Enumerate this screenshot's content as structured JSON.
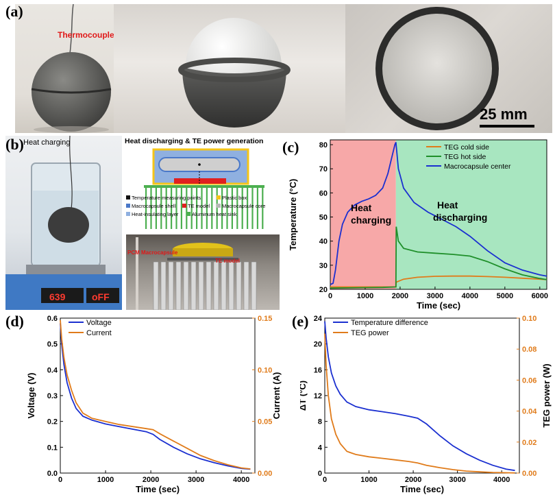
{
  "panels": {
    "a": {
      "label": "(a)",
      "thermocouple_label": "Thermocouple",
      "scale_bar": "25 mm"
    },
    "b": {
      "label": "(b)",
      "heat_charging_title": "Heat charging",
      "discharging_title": "Heat discharging & TE power generation",
      "legend": [
        {
          "text": "Temperature measuring points",
          "color": "#111111"
        },
        {
          "text": "Plastic box",
          "color": "#f5c518"
        },
        {
          "text": "Macrocapsule shell",
          "color": "#4a78c8"
        },
        {
          "text": "TE model",
          "color": "#e02020"
        },
        {
          "text": "Macrocapsule core",
          "color": "#b8b8b8"
        },
        {
          "text": "Heat-insulating layer",
          "color": "#8fb0e0"
        },
        {
          "text": "Aluminum heat sink",
          "color": "#4caf50"
        }
      ],
      "photo_labels": {
        "macrocapsule": "PCM Macrocapsule",
        "te_model": "TE model"
      },
      "display": {
        "left": "639",
        "right": "oFF"
      }
    }
  },
  "charts": {
    "c": {
      "label": "(c)",
      "annotations": [
        "Heat",
        "charging",
        "Heat",
        "discharging"
      ],
      "xtick_labels": [
        "0",
        "1000",
        "2000",
        "3000",
        "4000",
        "5000",
        "6000"
      ],
      "ytick_labels": [
        "20",
        "30",
        "40",
        "50",
        "60",
        "70",
        "80"
      ]
    },
    "d": {
      "label": "(d)",
      "xtick_labels": [
        "0",
        "1000",
        "2000",
        "3000",
        "4000"
      ],
      "y1tick_labels": [
        "0.0",
        "0.1",
        "0.2",
        "0.3",
        "0.4",
        "0.5",
        "0.6"
      ],
      "y2tick_labels": [
        "0.00",
        "0.05",
        "0.10",
        "0.15"
      ]
    },
    "e": {
      "label": "(e)",
      "xtick_labels": [
        "0",
        "1000",
        "2000",
        "3000",
        "4000"
      ],
      "y1tick_labels": [
        "0",
        "4",
        "8",
        "12",
        "16",
        "20",
        "24"
      ],
      "y2tick_labels": [
        "0.00",
        "0.02",
        "0.04",
        "0.06",
        "0.08",
        "0.10"
      ]
    }
  },
  "chart_data": [
    {
      "type": "line",
      "xlabel": "Time (sec)",
      "ylabel": "Temperature (°C)",
      "xlim": [
        0,
        6200
      ],
      "ylim": [
        20,
        82
      ],
      "legend_position": "top-right",
      "shaded_regions": [
        {
          "label": "Heat charging",
          "x": [
            0,
            1880
          ],
          "color": "#f7a8a8"
        },
        {
          "label": "Heat discharging",
          "x": [
            1880,
            6200
          ],
          "color": "#a8e6c0"
        }
      ],
      "series": [
        {
          "name": "TEG cold side",
          "color": "#e07b1a",
          "x": [
            0,
            500,
            1000,
            1500,
            1880,
            1890,
            2100,
            2500,
            3000,
            3500,
            4000,
            4500,
            5000,
            5500,
            6000,
            6200
          ],
          "y": [
            21,
            21,
            21,
            21,
            21,
            23,
            24.2,
            25,
            25.4,
            25.5,
            25.5,
            25.3,
            25,
            24.6,
            24.2,
            24
          ]
        },
        {
          "name": "TEG hot side",
          "color": "#1f8f2a",
          "x": [
            0,
            500,
            1000,
            1500,
            1880,
            1890,
            1950,
            2100,
            2500,
            3000,
            3500,
            4000,
            4500,
            5000,
            5500,
            6000,
            6200
          ],
          "y": [
            20.5,
            20.6,
            20.7,
            20.8,
            21,
            46,
            40,
            37,
            35.5,
            35,
            34.5,
            33.8,
            31.5,
            28.5,
            26,
            24.5,
            24
          ]
        },
        {
          "name": "Macrocapsule center",
          "color": "#1a2fd0",
          "x": [
            0,
            80,
            150,
            250,
            350,
            500,
            700,
            900,
            1100,
            1300,
            1500,
            1650,
            1750,
            1850,
            1880,
            1950,
            2100,
            2400,
            2800,
            3200,
            3600,
            4000,
            4500,
            5000,
            5500,
            6000,
            6200
          ],
          "y": [
            22,
            22.5,
            28,
            40,
            47,
            52,
            55,
            56.5,
            57.5,
            59,
            62,
            68,
            74,
            80,
            81,
            70,
            62,
            56,
            52,
            49,
            46,
            42,
            36,
            31,
            28,
            26,
            25.5
          ]
        }
      ]
    },
    {
      "type": "line",
      "xlabel": "Time (sec)",
      "ylabel": "Voltage (V)",
      "y2label": "Current (A)",
      "xlim": [
        0,
        4300
      ],
      "ylim": [
        0,
        0.6
      ],
      "y2lim": [
        0,
        0.15
      ],
      "legend_position": "top-left",
      "series": [
        {
          "name": "Voltage",
          "axis": "left",
          "color": "#1a2fd0",
          "x": [
            0,
            30,
            80,
            150,
            250,
            350,
            500,
            700,
            1000,
            1300,
            1600,
            1900,
            2050,
            2200,
            2500,
            2800,
            3100,
            3400,
            3700,
            4000,
            4200
          ],
          "y": [
            0.58,
            0.5,
            0.42,
            0.35,
            0.29,
            0.25,
            0.22,
            0.205,
            0.19,
            0.18,
            0.17,
            0.16,
            0.15,
            0.13,
            0.1,
            0.075,
            0.055,
            0.04,
            0.028,
            0.018,
            0.015
          ]
        },
        {
          "name": "Current",
          "axis": "right",
          "color": "#e07b1a",
          "x": [
            0,
            30,
            80,
            150,
            250,
            350,
            500,
            700,
            1000,
            1300,
            1600,
            1900,
            2050,
            2200,
            2500,
            2800,
            3100,
            3400,
            3700,
            4000,
            4200
          ],
          "y": [
            0.148,
            0.13,
            0.112,
            0.095,
            0.08,
            0.068,
            0.058,
            0.053,
            0.05,
            0.047,
            0.045,
            0.043,
            0.042,
            0.038,
            0.031,
            0.024,
            0.017,
            0.012,
            0.008,
            0.005,
            0.004
          ]
        }
      ]
    },
    {
      "type": "line",
      "xlabel": "Time (sec)",
      "ylabel": "ΔT (°C)",
      "y2label": "TEG power (W)",
      "xlim": [
        0,
        4400
      ],
      "ylim": [
        0,
        24
      ],
      "y2lim": [
        0,
        0.1
      ],
      "legend_position": "top-left",
      "series": [
        {
          "name": "Temperature difference",
          "axis": "left",
          "color": "#1a2fd0",
          "x": [
            0,
            30,
            80,
            150,
            250,
            350,
            500,
            700,
            1000,
            1300,
            1600,
            1900,
            2100,
            2300,
            2600,
            2900,
            3200,
            3500,
            3800,
            4100,
            4300
          ],
          "y": [
            23.5,
            21,
            18,
            15.5,
            13.5,
            12.2,
            11,
            10.3,
            9.8,
            9.5,
            9.2,
            8.8,
            8.5,
            7.6,
            5.8,
            4.2,
            3,
            2,
            1.2,
            0.6,
            0.4
          ]
        },
        {
          "name": "TEG power",
          "axis": "right",
          "color": "#e07b1a",
          "x": [
            0,
            30,
            80,
            150,
            250,
            350,
            500,
            700,
            1000,
            1300,
            1600,
            1900,
            2100,
            2300,
            2600,
            2900,
            3200,
            3500,
            3800,
            4100,
            4300
          ],
          "y": [
            0.09,
            0.07,
            0.05,
            0.035,
            0.025,
            0.019,
            0.014,
            0.012,
            0.0105,
            0.0095,
            0.0085,
            0.0075,
            0.0065,
            0.005,
            0.0035,
            0.0022,
            0.0013,
            0.0008,
            0.0004,
            0.0002,
            0.0001
          ]
        }
      ]
    }
  ]
}
